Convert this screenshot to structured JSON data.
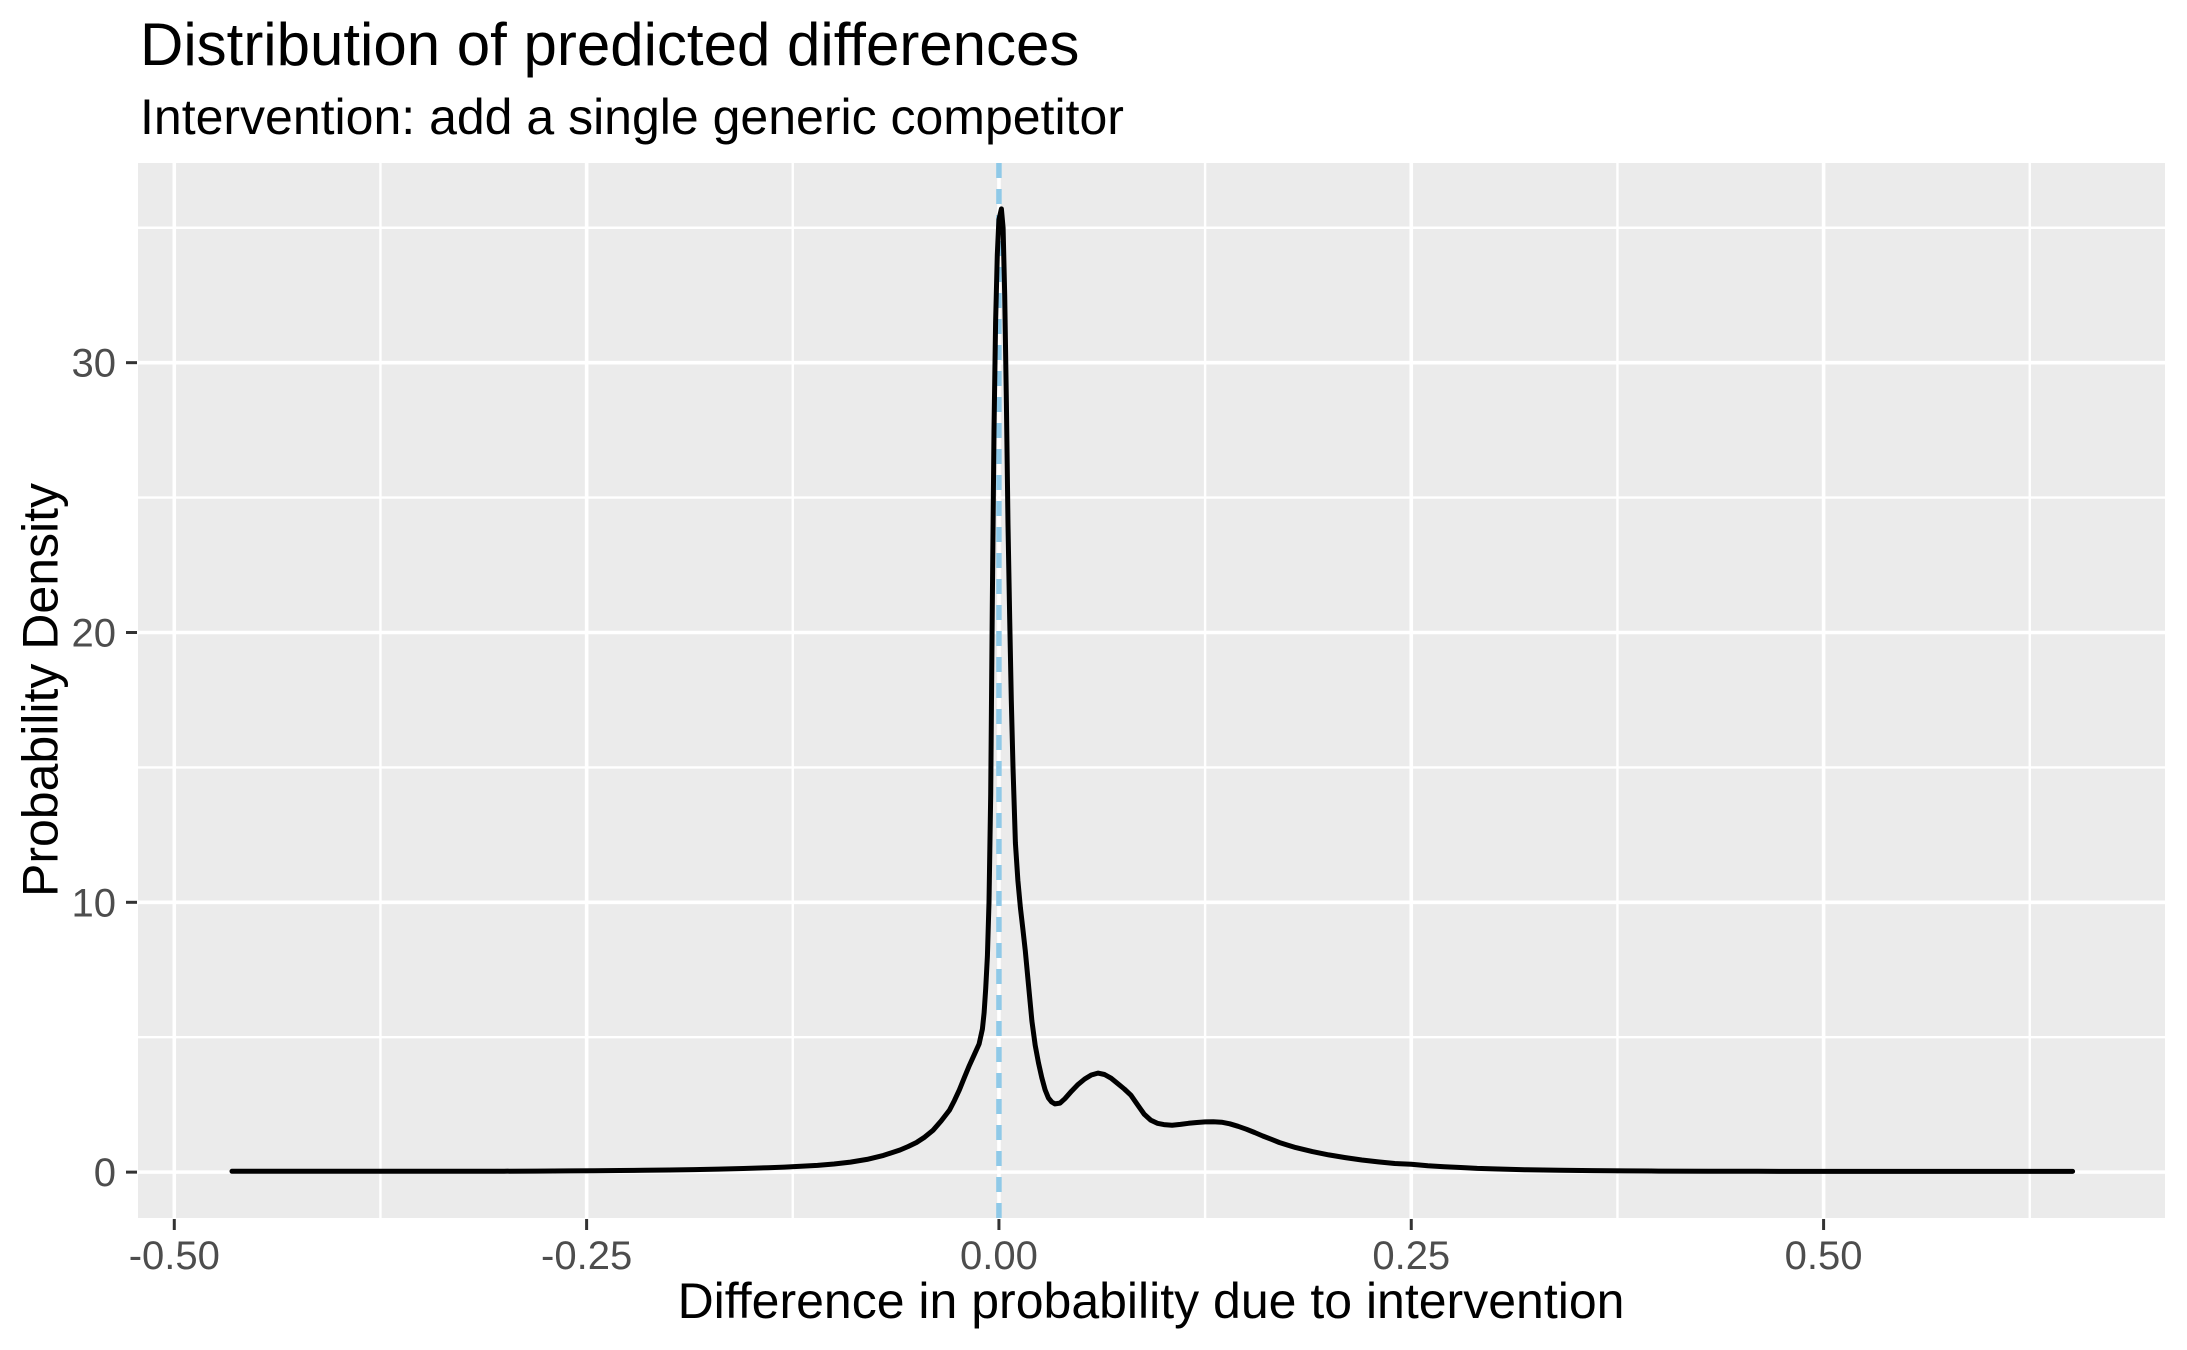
{
  "chart_data": {
    "type": "line",
    "title": "Distribution of predicted differences",
    "subtitle": "Intervention: add a single generic competitor",
    "xlabel": "Difference in probability due to intervention",
    "ylabel": "Probability Density",
    "legend": false,
    "grid": true,
    "theme": "ggplot-gray",
    "colors": {
      "panel_bg": "#EBEBEB",
      "grid": "#FFFFFF",
      "tick_mark": "#333333",
      "tick_label": "#4D4D4D",
      "title_text": "#000000",
      "density_line": "#000000",
      "reference_line": "#8FC9E8"
    },
    "xlim": [
      -0.522,
      0.707
    ],
    "ylim": [
      -1.7,
      37.4
    ],
    "x_ticks": {
      "values": [
        -0.5,
        -0.25,
        0.0,
        0.25,
        0.5
      ],
      "labels": [
        "-0.50",
        "-0.25",
        "0.00",
        "0.25",
        "0.50"
      ]
    },
    "y_ticks": {
      "values": [
        0,
        10,
        20,
        30
      ],
      "labels": [
        "0",
        "10",
        "20",
        "30"
      ]
    },
    "x_minor_gridlines": [
      -0.375,
      -0.125,
      0.125,
      0.375,
      0.625
    ],
    "y_minor_gridlines": [
      5,
      15,
      25,
      35
    ],
    "reference_line": {
      "x": 0.0,
      "style": "dashed",
      "color": "#8FC9E8"
    },
    "series": [
      {
        "name": "predicted-difference-density",
        "color": "#000000",
        "points": [
          [
            -0.465,
            0.03
          ],
          [
            -0.44,
            0.03
          ],
          [
            -0.42,
            0.03
          ],
          [
            -0.4,
            0.03
          ],
          [
            -0.38,
            0.03
          ],
          [
            -0.36,
            0.03
          ],
          [
            -0.34,
            0.03
          ],
          [
            -0.32,
            0.033
          ],
          [
            -0.3,
            0.036
          ],
          [
            -0.28,
            0.04
          ],
          [
            -0.26,
            0.046
          ],
          [
            -0.245,
            0.052
          ],
          [
            -0.23,
            0.06
          ],
          [
            -0.215,
            0.068
          ],
          [
            -0.2,
            0.08
          ],
          [
            -0.185,
            0.095
          ],
          [
            -0.17,
            0.113
          ],
          [
            -0.155,
            0.135
          ],
          [
            -0.14,
            0.163
          ],
          [
            -0.13,
            0.187
          ],
          [
            -0.12,
            0.215
          ],
          [
            -0.11,
            0.25
          ],
          [
            -0.1,
            0.3
          ],
          [
            -0.09,
            0.37
          ],
          [
            -0.08,
            0.47
          ],
          [
            -0.07,
            0.62
          ],
          [
            -0.06,
            0.82
          ],
          [
            -0.055,
            0.95
          ],
          [
            -0.05,
            1.1
          ],
          [
            -0.045,
            1.3
          ],
          [
            -0.04,
            1.55
          ],
          [
            -0.035,
            1.9
          ],
          [
            -0.03,
            2.3
          ],
          [
            -0.027,
            2.65
          ],
          [
            -0.024,
            3.05
          ],
          [
            -0.021,
            3.5
          ],
          [
            -0.018,
            3.95
          ],
          [
            -0.015,
            4.35
          ],
          [
            -0.012,
            4.75
          ],
          [
            -0.01,
            5.3
          ],
          [
            -0.009,
            5.9
          ],
          [
            -0.008,
            6.8
          ],
          [
            -0.007,
            8.0
          ],
          [
            -0.006,
            10.0
          ],
          [
            -0.005,
            14.0
          ],
          [
            -0.004,
            21.0
          ],
          [
            -0.003,
            27.5
          ],
          [
            -0.002,
            31.5
          ],
          [
            -0.001,
            34.0
          ],
          [
            0.0,
            35.3
          ],
          [
            0.0015,
            35.7
          ],
          [
            0.0025,
            35.0
          ],
          [
            0.0035,
            32.5
          ],
          [
            0.0045,
            28.5
          ],
          [
            0.0055,
            24.0
          ],
          [
            0.0065,
            20.5
          ],
          [
            0.0075,
            17.5
          ],
          [
            0.0085,
            15.0
          ],
          [
            0.01,
            12.2
          ],
          [
            0.0115,
            10.8
          ],
          [
            0.013,
            9.8
          ],
          [
            0.0145,
            9.0
          ],
          [
            0.016,
            8.2
          ],
          [
            0.018,
            6.9
          ],
          [
            0.02,
            5.6
          ],
          [
            0.022,
            4.7
          ],
          [
            0.024,
            4.05
          ],
          [
            0.026,
            3.5
          ],
          [
            0.028,
            3.05
          ],
          [
            0.03,
            2.75
          ],
          [
            0.032,
            2.6
          ],
          [
            0.034,
            2.53
          ],
          [
            0.037,
            2.56
          ],
          [
            0.04,
            2.72
          ],
          [
            0.044,
            3.0
          ],
          [
            0.048,
            3.25
          ],
          [
            0.052,
            3.45
          ],
          [
            0.056,
            3.6
          ],
          [
            0.06,
            3.67
          ],
          [
            0.064,
            3.62
          ],
          [
            0.068,
            3.48
          ],
          [
            0.072,
            3.28
          ],
          [
            0.076,
            3.08
          ],
          [
            0.08,
            2.85
          ],
          [
            0.084,
            2.5
          ],
          [
            0.088,
            2.15
          ],
          [
            0.092,
            1.93
          ],
          [
            0.096,
            1.81
          ],
          [
            0.1,
            1.76
          ],
          [
            0.105,
            1.74
          ],
          [
            0.11,
            1.77
          ],
          [
            0.115,
            1.81
          ],
          [
            0.12,
            1.84
          ],
          [
            0.125,
            1.86
          ],
          [
            0.13,
            1.87
          ],
          [
            0.135,
            1.85
          ],
          [
            0.14,
            1.79
          ],
          [
            0.145,
            1.7
          ],
          [
            0.15,
            1.59
          ],
          [
            0.155,
            1.47
          ],
          [
            0.16,
            1.34
          ],
          [
            0.165,
            1.22
          ],
          [
            0.17,
            1.1
          ],
          [
            0.175,
            1.0
          ],
          [
            0.18,
            0.91
          ],
          [
            0.19,
            0.76
          ],
          [
            0.2,
            0.64
          ],
          [
            0.21,
            0.54
          ],
          [
            0.22,
            0.45
          ],
          [
            0.23,
            0.38
          ],
          [
            0.24,
            0.32
          ],
          [
            0.25,
            0.29
          ],
          [
            0.26,
            0.24
          ],
          [
            0.27,
            0.2
          ],
          [
            0.28,
            0.17
          ],
          [
            0.29,
            0.14
          ],
          [
            0.3,
            0.12
          ],
          [
            0.32,
            0.085
          ],
          [
            0.34,
            0.067
          ],
          [
            0.36,
            0.055
          ],
          [
            0.38,
            0.047
          ],
          [
            0.4,
            0.04
          ],
          [
            0.43,
            0.034
          ],
          [
            0.46,
            0.03
          ],
          [
            0.5,
            0.028
          ],
          [
            0.55,
            0.028
          ],
          [
            0.6,
            0.028
          ],
          [
            0.651,
            0.028
          ]
        ]
      }
    ]
  }
}
